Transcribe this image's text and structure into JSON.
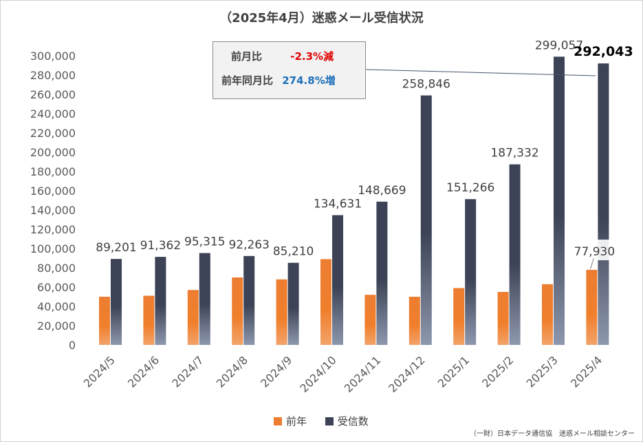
{
  "chart_data": {
    "type": "bar",
    "title": "（2025年4月）迷惑メール受信状況",
    "categories": [
      "2024/5",
      "2024/6",
      "2024/7",
      "2024/8",
      "2024/9",
      "2024/10",
      "2024/11",
      "2024/12",
      "2025/1",
      "2025/2",
      "2025/3",
      "2025/4"
    ],
    "series": [
      {
        "name": "前年",
        "color": "#ed7d31",
        "values": [
          50000,
          51000,
          57000,
          70000,
          68000,
          89000,
          52000,
          50000,
          59000,
          55000,
          63000,
          77930
        ]
      },
      {
        "name": "受信数",
        "color": "#3c4356",
        "values": [
          89201,
          91362,
          95315,
          92263,
          85210,
          134631,
          148669,
          258846,
          151266,
          187332,
          299057,
          292043
        ]
      }
    ],
    "data_labels": {
      "受信数": [
        "89,201",
        "91,362",
        "95,315",
        "92,263",
        "85,210",
        "134,631",
        "148,669",
        "258,846",
        "151,266",
        "187,332",
        "299,057",
        "292,043"
      ],
      "前年_last": "77,930"
    },
    "ylim": [
      0,
      300000
    ],
    "y_ticks": [
      "0",
      "20,000",
      "40,000",
      "60,000",
      "80,000",
      "100,000",
      "120,000",
      "140,000",
      "160,000",
      "180,000",
      "200,000",
      "220,000",
      "240,000",
      "260,000",
      "280,000",
      "300,000"
    ],
    "xlabel": "",
    "ylabel": "",
    "grid": false,
    "legend_position": "bottom"
  },
  "comparison": {
    "mom_label": "前月比",
    "mom_value": "-2.3%減",
    "yoy_label": "前年同月比",
    "yoy_value": "274.8%増"
  },
  "legend": {
    "prev_year": "前年",
    "received": "受信数"
  },
  "footer": "（一財）日本データ通信協　迷惑メール相談センター"
}
